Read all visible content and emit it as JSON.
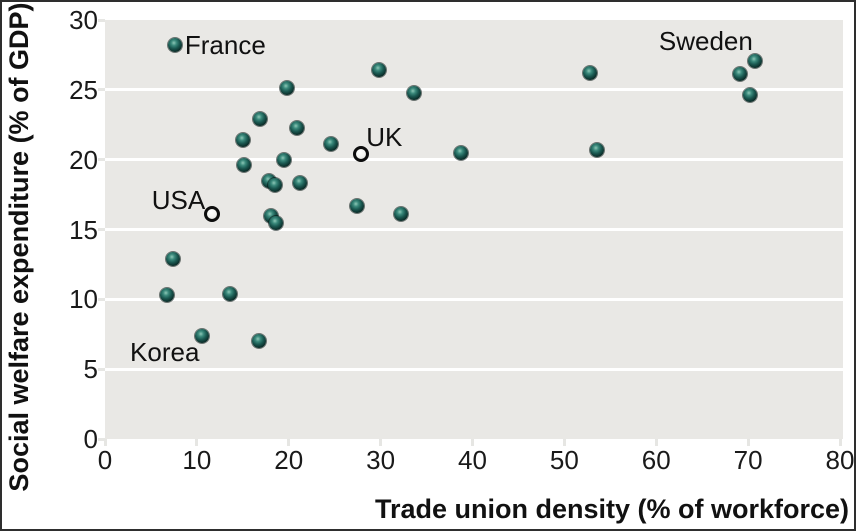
{
  "figure": {
    "border_color": "#2e2e2e",
    "background_color": "#ffffff"
  },
  "colors": {
    "plot_background": "#e9e8e5",
    "gridline": "#ffffff",
    "tick_mark": "#e6e6e3",
    "filled_point": "#1b5a52",
    "open_point_fill": "#f4f4f1",
    "open_point_ring": "#0d0d0d",
    "text": "#111111"
  },
  "chart_data": {
    "type": "scatter",
    "title": "",
    "xlabel": "Trade union density (% of workforce)",
    "ylabel": "Social welfare expenditure (% of GDP)",
    "xlim": [
      0,
      80
    ],
    "ylim": [
      0,
      30
    ],
    "x_ticks": [
      0,
      10,
      20,
      30,
      40,
      50,
      60,
      70,
      80
    ],
    "y_ticks": [
      0,
      5,
      10,
      15,
      20,
      25,
      30
    ],
    "gridlines": {
      "horizontal_at": [
        5,
        10,
        15,
        20,
        25
      ],
      "vertical": false
    },
    "legend_position": "none",
    "series": [
      {
        "name": "countries-filled",
        "marker": "filled-sphere",
        "points": [
          [
            7.6,
            28.2
          ],
          [
            29.8,
            26.4
          ],
          [
            19.8,
            25.1
          ],
          [
            33.6,
            24.8
          ],
          [
            16.9,
            22.9
          ],
          [
            20.9,
            22.3
          ],
          [
            15.0,
            21.4
          ],
          [
            24.6,
            21.1
          ],
          [
            19.5,
            20.0
          ],
          [
            15.1,
            19.6
          ],
          [
            17.8,
            18.5
          ],
          [
            18.5,
            18.2
          ],
          [
            21.2,
            18.3
          ],
          [
            27.4,
            16.7
          ],
          [
            32.2,
            16.1
          ],
          [
            18.1,
            16.0
          ],
          [
            18.6,
            15.5
          ],
          [
            7.4,
            12.9
          ],
          [
            52.8,
            26.2
          ],
          [
            70.7,
            27.1
          ],
          [
            69.1,
            26.1
          ],
          [
            70.2,
            24.6
          ],
          [
            38.7,
            20.5
          ],
          [
            53.6,
            20.7
          ],
          [
            6.7,
            10.3
          ],
          [
            13.6,
            10.4
          ],
          [
            10.6,
            7.4
          ],
          [
            16.8,
            7.0
          ]
        ]
      },
      {
        "name": "countries-open",
        "marker": "open-circle",
        "points": [
          [
            27.9,
            20.4
          ],
          [
            11.6,
            16.1
          ]
        ]
      }
    ],
    "annotations": [
      {
        "text": "France",
        "x": 13.1,
        "y": 28.2
      },
      {
        "text": "Sweden",
        "x": 65.4,
        "y": 28.5
      },
      {
        "text": "UK",
        "x": 30.4,
        "y": 21.6
      },
      {
        "text": "USA",
        "x": 8.0,
        "y": 17.1
      },
      {
        "text": "Korea",
        "x": 6.5,
        "y": 6.2
      }
    ]
  }
}
